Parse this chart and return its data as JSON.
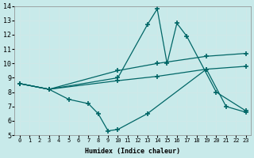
{
  "bg_color": "#c8eaea",
  "line_color": "#006666",
  "grid_color": "#d0e8e8",
  "xlabel": "Humidex (Indice chaleur)",
  "xlim": [
    -0.5,
    23.5
  ],
  "ylim": [
    5,
    14
  ],
  "xticks": [
    0,
    1,
    2,
    3,
    4,
    5,
    6,
    7,
    8,
    9,
    10,
    11,
    12,
    13,
    14,
    15,
    16,
    17,
    18,
    19,
    20,
    21,
    22,
    23
  ],
  "yticks": [
    5,
    6,
    7,
    8,
    9,
    10,
    11,
    12,
    13,
    14
  ],
  "lines": [
    {
      "x": [
        0,
        3,
        10,
        13,
        14,
        15,
        16,
        17,
        20,
        23
      ],
      "y": [
        8.6,
        8.2,
        9.0,
        12.7,
        13.8,
        10.0,
        12.8,
        11.9,
        8.0,
        6.7
      ]
    },
    {
      "x": [
        0,
        3,
        5,
        7,
        8,
        9,
        10,
        13,
        19,
        21,
        23
      ],
      "y": [
        8.6,
        8.2,
        7.5,
        7.2,
        6.5,
        5.3,
        5.4,
        6.5,
        9.6,
        7.0,
        6.6
      ]
    },
    {
      "x": [
        0,
        3,
        10,
        14,
        19,
        23
      ],
      "y": [
        8.6,
        8.2,
        9.5,
        10.0,
        10.5,
        10.7
      ]
    },
    {
      "x": [
        0,
        3,
        10,
        14,
        19,
        23
      ],
      "y": [
        8.6,
        8.2,
        8.8,
        9.1,
        9.6,
        9.8
      ]
    }
  ]
}
